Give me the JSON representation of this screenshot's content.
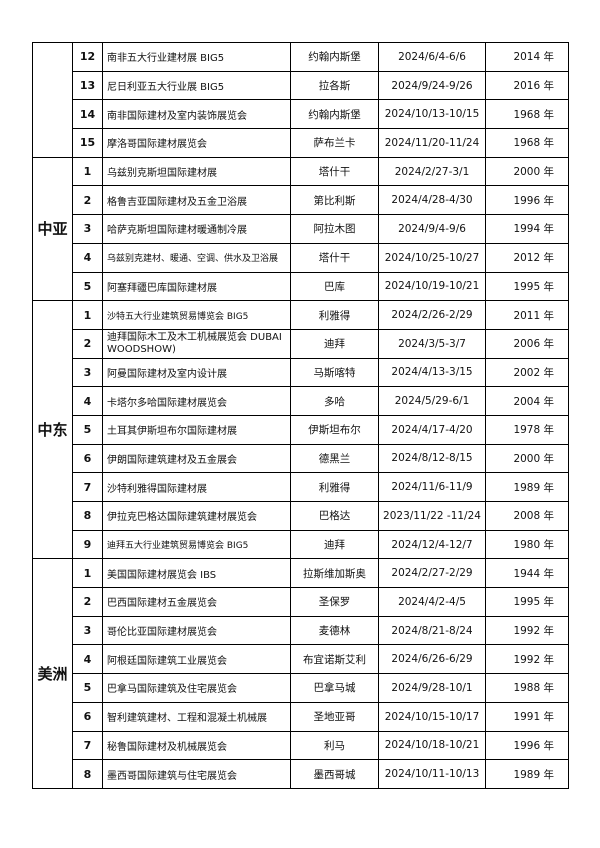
{
  "groups": [
    {
      "rows": [
        [
          12,
          "南非五大行业建材展 BIG5",
          "约翰内斯堡",
          "2024/6/4-6/6",
          "2014 年"
        ],
        [
          13,
          "尼日利亚五大行业展 BIG5",
          "拉各斯",
          "2024/9/24-9/26",
          "2016 年"
        ],
        [
          14,
          "南非国际建材及室内装饰展览会",
          "约翰内斯堡",
          "2024/10/13-10/15",
          "1968 年"
        ],
        [
          15,
          "摩洛哥国际建材展览会",
          "萨布兰卡",
          "2024/11/20-11/24",
          "1968 年"
        ]
      ]
    },
    {
      "region": "中亚",
      "rows": [
        [
          1,
          "乌兹别克斯坦国际建材展",
          "塔什干",
          "2024/2/27-3/1",
          "2000 年"
        ],
        [
          2,
          "格鲁吉亚国际建材及五金卫浴展",
          "第比利斯",
          "2024/4/28-4/30",
          "1996 年"
        ],
        [
          3,
          "哈萨克斯坦国际建材暖通制冷展",
          "阿拉木图",
          "2024/9/4-9/6",
          "1994 年"
        ],
        [
          4,
          "乌兹别克建材、暖通、空调、供水及卫浴展",
          "塔什干",
          "2024/10/25-10/27",
          "2012 年"
        ],
        [
          5,
          "阿塞拜疆巴库国际建材展",
          "巴库",
          "2024/10/19-10/21",
          "1995 年"
        ]
      ]
    },
    {
      "region": "中东",
      "rows": [
        [
          1,
          "沙特五大行业建筑贸易博览会 BIG5",
          "利雅得",
          "2024/2/26-2/29",
          "2011 年"
        ],
        [
          2,
          "迪拜国际木工及木工机械展览会 DUBAI WOODSHOW)",
          "迪拜",
          "2024/3/5-3/7",
          "2006 年"
        ],
        [
          3,
          "阿曼国际建材及室内设计展",
          "马斯喀特",
          "2024/4/13-3/15",
          "2002 年"
        ],
        [
          4,
          "卡塔尔多哈国际建材展览会",
          "多哈",
          "2024/5/29-6/1",
          "2004 年"
        ],
        [
          5,
          "土耳其伊斯坦布尔国际建材展",
          "伊斯坦布尔",
          "2024/4/17-4/20",
          "1978 年"
        ],
        [
          6,
          "伊朗国际建筑建材及五金展会",
          "德黑兰",
          "2024/8/12-8/15",
          "2000 年"
        ],
        [
          7,
          "沙特利雅得国际建材展",
          "利雅得",
          "2024/11/6-11/9",
          "1989 年"
        ],
        [
          8,
          "伊拉克巴格达国际建筑建材展览会",
          "巴格达",
          "2023/11/22 -11/24",
          "2008 年"
        ],
        [
          9,
          "迪拜五大行业建筑贸易博览会 BIG5",
          "迪拜",
          "2024/12/4-12/7",
          "1980 年"
        ]
      ]
    },
    {
      "region": "美洲",
      "rows": [
        [
          1,
          "美国国际建材展览会 IBS",
          "拉斯维加斯奥",
          "2024/2/27-2/29",
          "1944 年"
        ],
        [
          2,
          "巴西国际建材五金展览会",
          "圣保罗",
          "2024/4/2-4/5",
          "1995 年"
        ],
        [
          3,
          "哥伦比亚国际建材展览会",
          "麦德林",
          "2024/8/21-8/24",
          "1992 年"
        ],
        [
          4,
          "阿根廷国际建筑工业展览会",
          "布宜诺斯艾利",
          "2024/6/26-6/29",
          "1992 年"
        ],
        [
          5,
          "巴拿马国际建筑及住宅展览会",
          "巴拿马城",
          "2024/9/28-10/1",
          "1988 年"
        ],
        [
          6,
          "智利建筑建材、工程和混凝土机械展",
          "圣地亚哥",
          "2024/10/15-10/17",
          "1991 年"
        ],
        [
          7,
          "秘鲁国际建材及机械展览会",
          "利马",
          "2024/10/18-10/21",
          "1996 年"
        ],
        [
          8,
          "墨西哥国际建筑与住宅展览会",
          "墨西哥城",
          "2024/10/11-10/13",
          "1989 年"
        ]
      ]
    }
  ]
}
